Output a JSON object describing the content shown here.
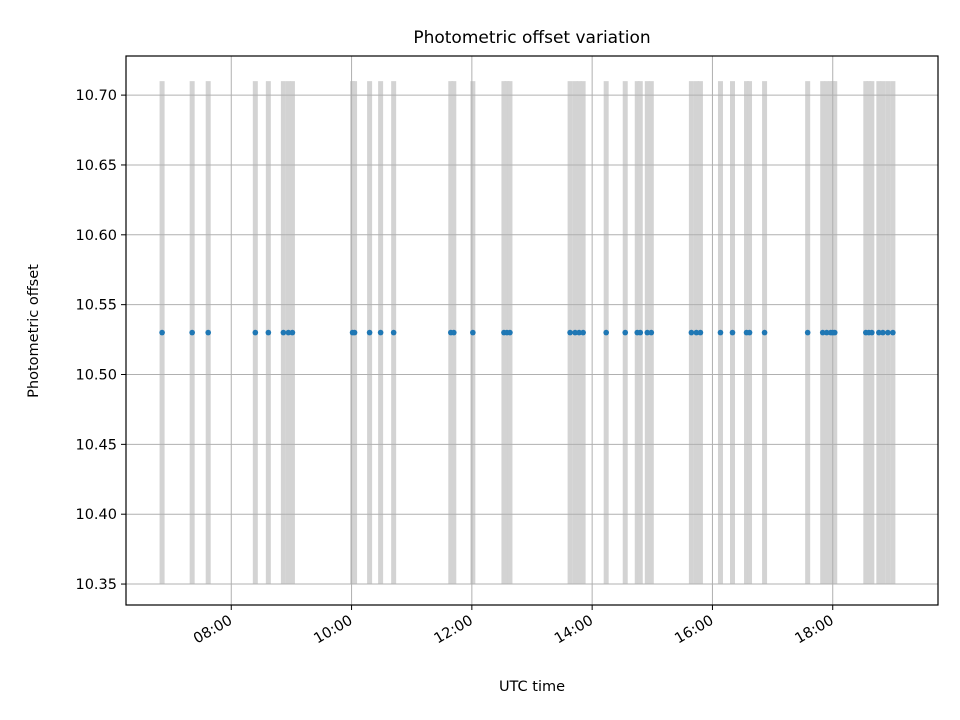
{
  "chart_data": {
    "type": "scatter",
    "title": "Photometric offset variation",
    "xlabel": "UTC time",
    "ylabel": "Photometric offset",
    "xlim": [
      "06:15",
      "19:45"
    ],
    "ylim": [
      10.335,
      10.728
    ],
    "x_ticks": [
      "08:00",
      "10:00",
      "12:00",
      "14:00",
      "16:00",
      "18:00"
    ],
    "y_ticks": [
      "10.35",
      "10.40",
      "10.45",
      "10.50",
      "10.55",
      "10.60",
      "10.65",
      "10.70"
    ],
    "grid": true,
    "colors": {
      "points": "#1f77b4",
      "bands": "#d3d3d3",
      "grid": "#b0b0b0"
    },
    "band_range": [
      10.35,
      10.71
    ],
    "series": [
      {
        "x": [
          "06:51",
          "07:21",
          "07:37",
          "08:24",
          "08:37",
          "08:52",
          "08:57",
          "09:01",
          "10:01",
          "10:03",
          "10:18",
          "10:29",
          "10:42",
          "11:39",
          "11:42",
          "12:01",
          "12:32",
          "12:35",
          "12:38",
          "13:38",
          "13:43",
          "13:47",
          "13:51",
          "14:14",
          "14:33",
          "14:45",
          "14:48",
          "14:55",
          "14:59",
          "15:39",
          "15:44",
          "15:48",
          "16:08",
          "16:20",
          "16:34",
          "16:37",
          "16:52",
          "17:35",
          "17:50",
          "17:54",
          "17:58",
          "18:00",
          "18:02",
          "18:33",
          "18:36",
          "18:39",
          "18:46",
          "18:50",
          "18:55",
          "19:00"
        ],
        "y": [
          10.53,
          10.53,
          10.53,
          10.53,
          10.53,
          10.53,
          10.53,
          10.53,
          10.53,
          10.53,
          10.53,
          10.53,
          10.53,
          10.53,
          10.53,
          10.53,
          10.53,
          10.53,
          10.53,
          10.53,
          10.53,
          10.53,
          10.53,
          10.53,
          10.53,
          10.53,
          10.53,
          10.53,
          10.53,
          10.53,
          10.53,
          10.53,
          10.53,
          10.53,
          10.53,
          10.53,
          10.53,
          10.53,
          10.53,
          10.53,
          10.53,
          10.53,
          10.53,
          10.53,
          10.53,
          10.53,
          10.53,
          10.53,
          10.53,
          10.53
        ]
      }
    ]
  }
}
